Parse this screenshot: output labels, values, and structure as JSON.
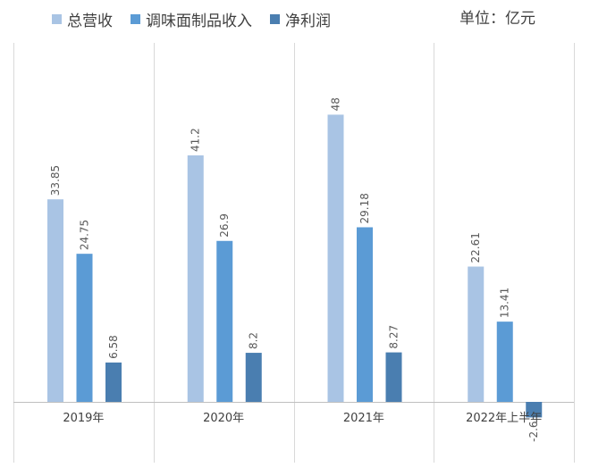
{
  "unit_label": "单位：亿元",
  "chart_data": {
    "type": "bar",
    "categories": [
      "2019年",
      "2020年",
      "2021年",
      "2022年上半年"
    ],
    "series": [
      {
        "name": "总营收",
        "values": [
          33.85,
          41.2,
          48,
          22.61
        ],
        "color": "#a9c4e4"
      },
      {
        "name": "调味面制品收入",
        "values": [
          24.75,
          26.9,
          29.18,
          13.41
        ],
        "color": "#5b9bd5"
      },
      {
        "name": "净利润",
        "values": [
          6.58,
          8.2,
          8.27,
          -2.6
        ],
        "color": "#4a7eb0"
      }
    ],
    "value_labels": [
      [
        "33.85",
        "41.2",
        "48",
        "22.61"
      ],
      [
        "24.75",
        "26.9",
        "29.18",
        "13.41"
      ],
      [
        "6.58",
        "8.2",
        "8.27",
        "-2.6"
      ]
    ],
    "ylim": [
      -10,
      55
    ],
    "grid": false,
    "legend_position": "top-left",
    "xlabel": "",
    "ylabel": ""
  }
}
